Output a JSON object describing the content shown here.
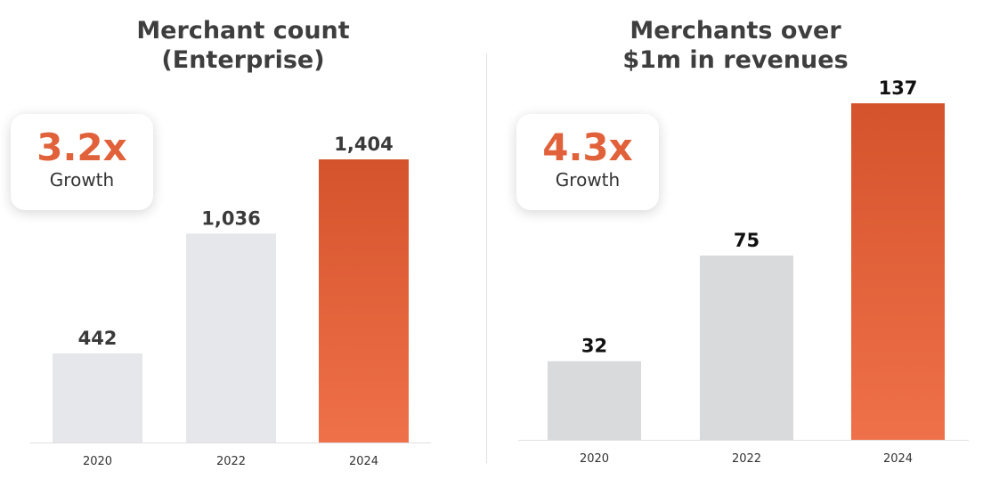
{
  "colors": {
    "accent": "#e0613a",
    "bar_gray_left": "#e6e7ea",
    "bar_gray_right": "#d9dadc",
    "bar_highlight_top": "#d5532c",
    "bar_highlight_bottom": "#ef7149"
  },
  "left": {
    "title": "Merchant count\n(Enterprise)",
    "growth_value": "3.2x",
    "growth_label": "Growth"
  },
  "right": {
    "title": "Merchants over\n$1m in revenues",
    "growth_value": "4.3x",
    "growth_label": "Growth"
  },
  "chart_data": [
    {
      "type": "bar",
      "title": "Merchant count\n(Enterprise)",
      "categories": [
        "2020",
        "2022",
        "2024"
      ],
      "values": [
        442,
        1036,
        1404
      ],
      "value_labels": [
        "442",
        "1,036",
        "1,404"
      ],
      "highlight": "2024",
      "ylim": [
        0,
        1404
      ],
      "grid": false,
      "annotation": "3.2x Growth"
    },
    {
      "type": "bar",
      "title": "Merchants over\n$1m in revenues",
      "categories": [
        "2020",
        "2022",
        "2024"
      ],
      "values": [
        32,
        75,
        137
      ],
      "value_labels": [
        "32",
        "75",
        "137"
      ],
      "highlight": "2024",
      "ylim": [
        0,
        137
      ],
      "grid": false,
      "annotation": "4.3x Growth"
    }
  ]
}
